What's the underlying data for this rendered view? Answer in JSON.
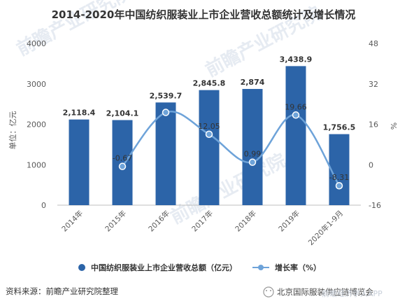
{
  "chart_data": {
    "type": "bar",
    "title": "2014-2020年中国纺织服装业上市企业营收总额统计及增长情况",
    "categories": [
      "2014年",
      "2015年",
      "2016年",
      "2017年",
      "2018年",
      "2019年",
      "2020年1-9月"
    ],
    "series": [
      {
        "name": "中国纺织服装业上市企业营收总额（亿元）",
        "type": "bar",
        "axis": "left",
        "values": [
          2118.4,
          2104.1,
          2539.7,
          2845.8,
          2874,
          3438.9,
          1756.5
        ],
        "labels": [
          "2,118.4",
          "2,104.1",
          "2,539.7",
          "2,845.8",
          "2,874",
          "3,438.9",
          "1,756.5"
        ]
      },
      {
        "name": "增长率（%）",
        "type": "line",
        "axis": "right",
        "values": [
          null,
          -0.67,
          20.7,
          12.05,
          0.99,
          19.66,
          -8.31
        ],
        "labels": [
          "",
          "-0.67",
          "",
          "12.05",
          "0.99",
          "19.66",
          "-8.31"
        ]
      }
    ],
    "ylabel": "单位：亿元",
    "y2label": "%",
    "ylim": [
      0,
      4000
    ],
    "y2lim": [
      -16,
      48
    ],
    "yticks": [
      "0",
      "1000",
      "2000",
      "3000",
      "4000"
    ],
    "y2ticks": [
      "-16",
      "0",
      "16",
      "32",
      "48"
    ],
    "grid": false,
    "legend_position": "bottom",
    "colors": {
      "bar": "#2c64a8",
      "line": "#6ea3d9",
      "marker": "#6ea3d9"
    }
  },
  "footer": {
    "source": "资料来源：前瞻产业研究院整理",
    "credit": "北京国际服装供应链博览会"
  },
  "watermarks": [
    "前瞻产业研究院",
    "前瞻产业研究院",
    "前瞻产业研究院",
    "前瞻经济学人APP"
  ]
}
